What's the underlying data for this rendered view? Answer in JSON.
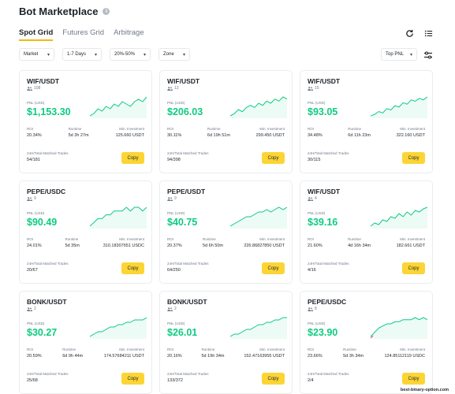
{
  "header": {
    "title": "Bot Marketplace",
    "info_icon": "info-icon"
  },
  "tabs": [
    {
      "label": "Spot Grid",
      "active": true
    },
    {
      "label": "Futures Grid",
      "active": false
    },
    {
      "label": "Arbitrage",
      "active": false
    }
  ],
  "filters": {
    "market": "Market",
    "days": "1-7 Days",
    "range": "20%-50%",
    "zone": "Zone",
    "sort": "Top PNL"
  },
  "labels": {
    "pnl": "PNL (USD)",
    "roi": "ROI",
    "runtime": "Runtime",
    "min_investment": "Min. Investment",
    "trades": "24H/Total Matched Trades",
    "copy": "Copy"
  },
  "colors": {
    "accent": "#fcd535",
    "positive": "#0ecb81",
    "negative": "#f6465d"
  },
  "cards": [
    {
      "pair": "WIF/USDT",
      "users": "108",
      "pnl": "$1,153.30",
      "roi": "20.34%",
      "runtime": "5d 3h 27m",
      "min_inv": "125.660 USDT",
      "trades": "54/181",
      "spark": [
        3,
        4,
        6,
        5,
        7,
        6,
        8,
        7,
        9,
        8,
        7,
        9,
        10,
        9,
        11
      ]
    },
    {
      "pair": "WIF/USDT",
      "users": "13",
      "pnl": "$206.03",
      "roi": "30.11%",
      "runtime": "6d 19h 51m",
      "min_inv": "299.450 USDT",
      "trades": "94/398",
      "spark": [
        2,
        3,
        5,
        4,
        6,
        7,
        6,
        8,
        7,
        9,
        8,
        10,
        9,
        11,
        10
      ]
    },
    {
      "pair": "WIF/USDT",
      "users": "15",
      "pnl": "$93.05",
      "roi": "34.48%",
      "runtime": "6d 11h 23m",
      "min_inv": "322.160 USDT",
      "trades": "30/115",
      "spark": [
        1,
        2,
        4,
        3,
        6,
        5,
        8,
        7,
        10,
        9,
        12,
        11,
        13,
        12,
        14
      ]
    },
    {
      "pair": "PEPE/USDC",
      "users": "9",
      "pnl": "$90.49",
      "roi": "24.01%",
      "runtime": "5d 35m",
      "min_inv": "310.18307651 USDC",
      "trades": "20/67",
      "spark": [
        4,
        5,
        6,
        6,
        7,
        7,
        8,
        8,
        8,
        9,
        8,
        9,
        9,
        8,
        9
      ]
    },
    {
      "pair": "PEPE/USDT",
      "users": "9",
      "pnl": "$40.75",
      "roi": "20.37%",
      "runtime": "5d 6h 50m",
      "min_inv": "226.86827850 USDT",
      "trades": "64/250",
      "spark": [
        3,
        4,
        5,
        6,
        7,
        7,
        8,
        9,
        9,
        10,
        9,
        10,
        11,
        10,
        11
      ]
    },
    {
      "pair": "WIF/USDT",
      "users": "4",
      "pnl": "$39.16",
      "roi": "21.60%",
      "runtime": "4d 16h 34m",
      "min_inv": "182.661 USDT",
      "trades": "4/16",
      "spark": [
        1,
        3,
        2,
        5,
        4,
        7,
        6,
        9,
        7,
        10,
        8,
        11,
        10,
        12,
        13
      ]
    },
    {
      "pair": "BONK/USDT",
      "users": "2",
      "pnl": "$30.27",
      "roi": "20.59%",
      "runtime": "6d 9h 44m",
      "min_inv": "174.57684211 USDT",
      "trades": "25/68",
      "spark": [
        3,
        4,
        5,
        5,
        6,
        7,
        7,
        8,
        8,
        9,
        9,
        10,
        10,
        10,
        11
      ]
    },
    {
      "pair": "BONK/USDT",
      "users": "2",
      "pnl": "$26.01",
      "roi": "20.16%",
      "runtime": "5d 19h 34m",
      "min_inv": "152.47163955 USDT",
      "trades": "133/372",
      "spark": [
        3,
        4,
        4,
        5,
        6,
        6,
        7,
        8,
        8,
        9,
        9,
        10,
        10,
        11,
        11
      ]
    },
    {
      "pair": "PEPE/USDC",
      "users": "8",
      "pnl": "$23.90",
      "roi": "23.66%",
      "runtime": "5d 3h 34m",
      "min_inv": "124.85112119 USDC",
      "trades": "2/4",
      "spark": [
        2,
        4,
        6,
        7,
        8,
        8,
        9,
        9,
        10,
        10,
        10,
        11,
        10,
        11,
        10
      ],
      "dip_start": true
    }
  ],
  "watermark": "best-binary-option.com"
}
